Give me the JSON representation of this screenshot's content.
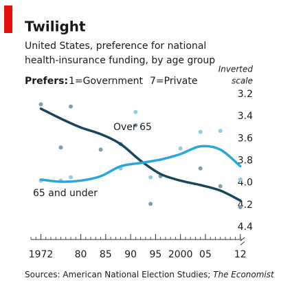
{
  "chart_data": {
    "type": "line",
    "title": "Twilight",
    "subtitle": [
      "United States, preference for national",
      "health-insurance funding, by age group"
    ],
    "legend_prefix": "Prefers:",
    "legend_items": [
      "1=Government",
      "7=Private"
    ],
    "scale_note": [
      "Inverted",
      "scale"
    ],
    "source": "Sources: American National Election Studies; ",
    "source_italic": "The Economist",
    "xlim": [
      1970,
      2013
    ],
    "xticks": [
      1972,
      {
        "value": 1980,
        "label": "80"
      },
      {
        "value": 1985,
        "label": "85"
      },
      {
        "value": 1990,
        "label": "90"
      },
      {
        "value": 1995,
        "label": "95"
      },
      2000,
      {
        "value": 2005,
        "label": "05"
      },
      {
        "value": 2012,
        "label": "12"
      }
    ],
    "ylim": [
      3.2,
      4.4
    ],
    "y_inverted": true,
    "yticks": [
      3.2,
      3.4,
      3.6,
      3.8,
      {
        "value": 4.0,
        "label": "4.0"
      },
      4.2,
      4.4
    ],
    "grid": false,
    "series": [
      {
        "name": "Over 65",
        "color": "#17475c",
        "point_color": "#7f9fae",
        "x": [
          1972,
          1976,
          1980,
          1984,
          1988,
          1992,
          1996,
          2000,
          2004,
          2008,
          2012
        ],
        "values": [
          3.33,
          3.42,
          3.5,
          3.56,
          3.65,
          3.8,
          3.92,
          3.98,
          4.02,
          4.07,
          4.16
        ],
        "points_x": [
          1972,
          1976,
          1978,
          1984,
          1988,
          1991,
          1994,
          1996,
          2004,
          2008,
          2012
        ],
        "points_y": [
          3.29,
          3.68,
          3.31,
          3.7,
          3.65,
          3.48,
          4.19,
          3.94,
          3.87,
          4.03,
          4.22
        ]
      },
      {
        "name": "65 and under",
        "color": "#2aa6da",
        "point_color": "#92cbe6",
        "x": [
          1972,
          1976,
          1980,
          1984,
          1988,
          1992,
          1996,
          2000,
          2004,
          2008,
          2012
        ],
        "values": [
          3.97,
          3.99,
          3.98,
          3.94,
          3.85,
          3.82,
          3.79,
          3.74,
          3.67,
          3.7,
          3.85
        ],
        "points_x": [
          1972,
          1976,
          1978,
          1988,
          1991,
          1994,
          2000,
          2004,
          2008,
          2012
        ],
        "points_y": [
          3.98,
          3.98,
          3.95,
          3.87,
          3.36,
          3.95,
          3.69,
          3.54,
          3.53,
          3.97
        ]
      }
    ]
  }
}
